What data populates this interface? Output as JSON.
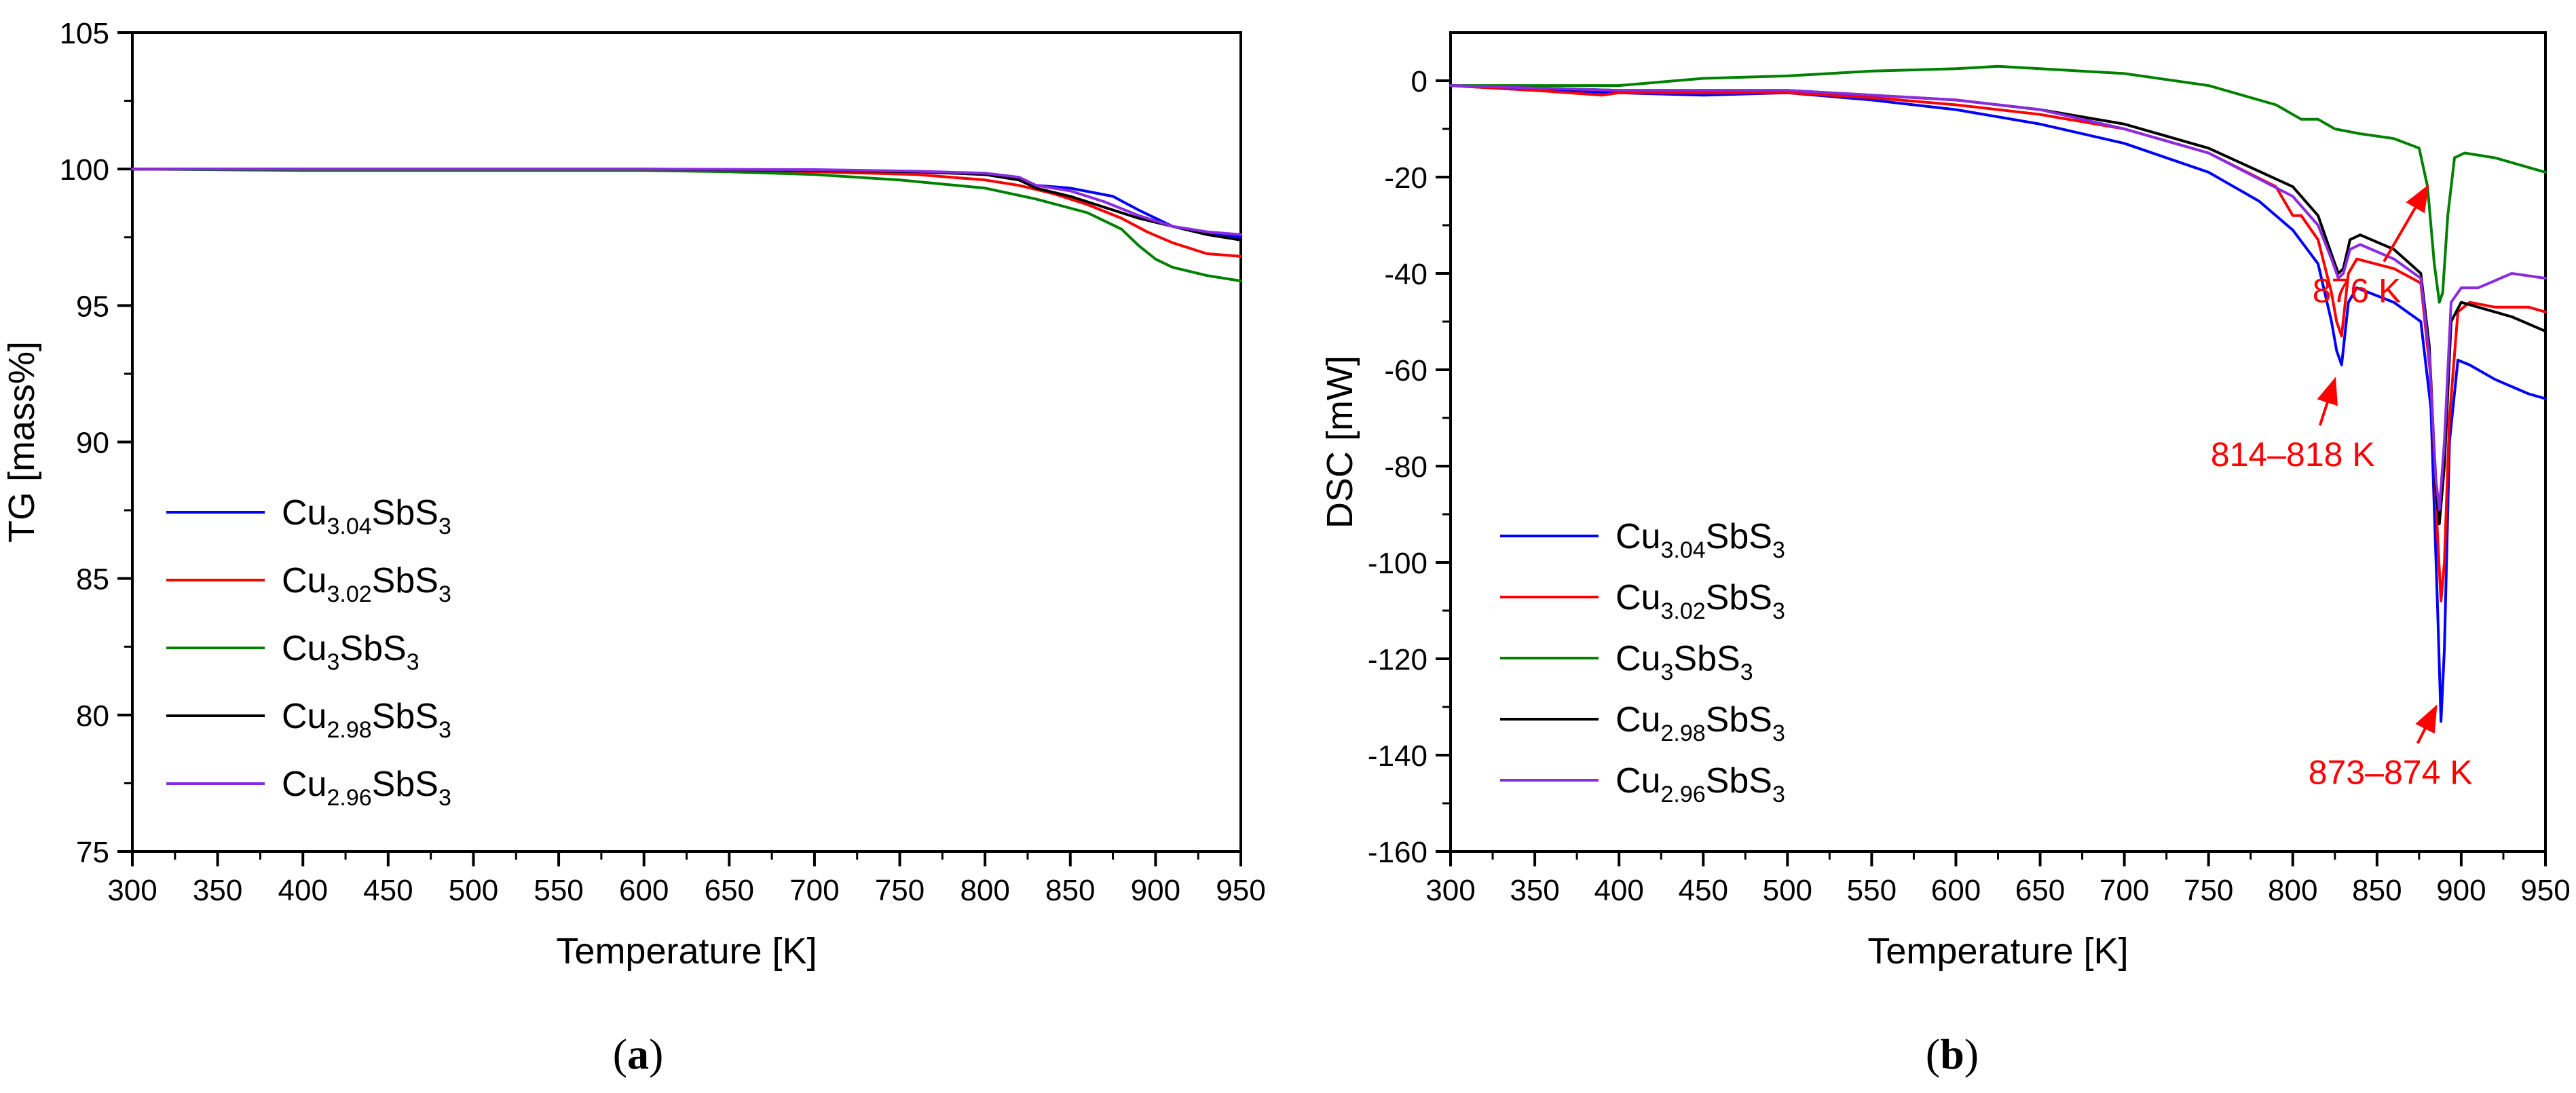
{
  "chart_data": [
    {
      "type": "line",
      "panel_label": "(a)",
      "xlabel": "Temperature [K]",
      "ylabel": "TG [mass%]",
      "xlim": [
        300,
        950
      ],
      "ylim": [
        75,
        105
      ],
      "xticks": [
        300,
        350,
        400,
        450,
        500,
        550,
        600,
        650,
        700,
        750,
        800,
        850,
        900,
        950
      ],
      "yticks": [
        75,
        80,
        85,
        90,
        95,
        100,
        105
      ],
      "legend_position": "left-middle",
      "series": [
        {
          "name": "Cu3.04SbS3",
          "label_main": "Cu",
          "label_sub": "3.04",
          "label_tail": "SbS",
          "label_sub2": "3",
          "color": "#0000ff",
          "x": [
            300,
            400,
            500,
            600,
            700,
            760,
            800,
            820,
            830,
            850,
            875,
            890,
            910,
            930,
            950
          ],
          "y": [
            100,
            100,
            100,
            100,
            99.95,
            99.9,
            99.8,
            99.6,
            99.4,
            99.3,
            99.0,
            98.5,
            97.9,
            97.7,
            97.5
          ]
        },
        {
          "name": "Cu3.02SbS3",
          "label_main": "Cu",
          "label_sub": "3.02",
          "label_tail": "SbS",
          "label_sub2": "3",
          "color": "#ff0000",
          "x": [
            300,
            400,
            500,
            600,
            700,
            760,
            800,
            820,
            840,
            860,
            880,
            895,
            910,
            930,
            950
          ],
          "y": [
            100,
            100,
            100,
            100,
            99.9,
            99.8,
            99.6,
            99.4,
            99.1,
            98.7,
            98.2,
            97.7,
            97.3,
            96.9,
            96.8
          ]
        },
        {
          "name": "Cu3SbS3",
          "label_main": "Cu",
          "label_sub": "3",
          "label_tail": "SbS",
          "label_sub2": "3",
          "color": "#008000",
          "x": [
            300,
            400,
            500,
            600,
            650,
            700,
            750,
            800,
            830,
            860,
            880,
            890,
            900,
            910,
            930,
            950
          ],
          "y": [
            100,
            99.95,
            99.95,
            99.95,
            99.9,
            99.8,
            99.6,
            99.3,
            98.9,
            98.4,
            97.8,
            97.2,
            96.7,
            96.4,
            96.1,
            95.9
          ]
        },
        {
          "name": "Cu2.98SbS3",
          "label_main": "Cu",
          "label_sub": "2.98",
          "label_tail": "SbS",
          "label_sub2": "3",
          "color": "#000000",
          "x": [
            300,
            400,
            500,
            600,
            700,
            760,
            800,
            820,
            830,
            850,
            870,
            890,
            910,
            930,
            950
          ],
          "y": [
            100,
            100,
            100,
            100,
            99.95,
            99.9,
            99.8,
            99.6,
            99.3,
            99.0,
            98.6,
            98.2,
            97.9,
            97.6,
            97.4
          ]
        },
        {
          "name": "Cu2.96SbS3",
          "label_main": "Cu",
          "label_sub": "2.96",
          "label_tail": "SbS",
          "label_sub2": "3",
          "color": "#8a2be2",
          "x": [
            300,
            400,
            500,
            600,
            700,
            760,
            800,
            820,
            830,
            850,
            870,
            890,
            910,
            930,
            950
          ],
          "y": [
            100,
            100,
            100,
            100,
            99.98,
            99.92,
            99.85,
            99.7,
            99.4,
            99.2,
            98.8,
            98.3,
            97.9,
            97.7,
            97.6
          ]
        }
      ]
    },
    {
      "type": "line",
      "panel_label": "(b)",
      "xlabel": "Temperature [K]",
      "ylabel": "DSC [mW]",
      "xlim": [
        300,
        950
      ],
      "ylim": [
        -160,
        10
      ],
      "xticks": [
        300,
        350,
        400,
        450,
        500,
        550,
        600,
        650,
        700,
        750,
        800,
        850,
        900,
        950
      ],
      "yticks": [
        -160,
        -140,
        -120,
        -100,
        -80,
        -60,
        -40,
        -20,
        0
      ],
      "legend_position": "left-lower",
      "annotations": [
        {
          "text": "876 K",
          "color": "#ff0000",
          "arrow_to": [
            880,
            -22
          ],
          "text_at": [
            838,
            -46
          ]
        },
        {
          "text": "814–818 K",
          "color": "#ff0000",
          "arrow_to": [
            825,
            -62
          ],
          "text_at": [
            800,
            -80
          ]
        },
        {
          "text": "873–874 K",
          "color": "#ff0000",
          "arrow_to": [
            885,
            -130
          ],
          "text_at": [
            858,
            -146
          ]
        }
      ],
      "series": [
        {
          "name": "Cu3.04SbS3",
          "label_main": "Cu",
          "label_sub": "3.04",
          "label_tail": "SbS",
          "label_sub2": "3",
          "color": "#0000ff",
          "x": [
            300,
            350,
            400,
            450,
            500,
            550,
            600,
            650,
            700,
            750,
            780,
            800,
            815,
            823,
            826,
            829,
            833,
            838,
            860,
            876,
            882,
            886,
            888,
            890,
            893,
            898,
            905,
            920,
            940,
            950
          ],
          "y": [
            -1,
            -2,
            -2.5,
            -3,
            -2.5,
            -4,
            -6,
            -9,
            -13,
            -19,
            -25,
            -31,
            -38,
            -50,
            -56,
            -59,
            -46,
            -43,
            -46,
            -50,
            -68,
            -110,
            -133,
            -118,
            -75,
            -58,
            -59,
            -62,
            -65,
            -66
          ]
        },
        {
          "name": "Cu3.02SbS3",
          "label_main": "Cu",
          "label_sub": "3.02",
          "label_tail": "SbS",
          "label_sub2": "3",
          "color": "#ff0000",
          "x": [
            300,
            350,
            390,
            400,
            450,
            500,
            550,
            600,
            650,
            700,
            750,
            790,
            800,
            805,
            815,
            823,
            826,
            829,
            833,
            838,
            860,
            876,
            882,
            886,
            888,
            890,
            893,
            898,
            905,
            920,
            940,
            950
          ],
          "y": [
            -1,
            -2,
            -3,
            -2.5,
            -2.5,
            -2.5,
            -3.5,
            -5,
            -7,
            -10,
            -15,
            -22,
            -28,
            -28,
            -33,
            -44,
            -50,
            -53,
            -40,
            -37,
            -39,
            -42,
            -62,
            -95,
            -108,
            -100,
            -70,
            -48,
            -46,
            -47,
            -47,
            -48
          ]
        },
        {
          "name": "Cu3SbS3",
          "label_main": "Cu",
          "label_sub": "3",
          "label_tail": "SbS",
          "label_sub2": "3",
          "color": "#008000",
          "x": [
            300,
            350,
            400,
            450,
            500,
            550,
            600,
            625,
            650,
            700,
            750,
            790,
            805,
            815,
            825,
            840,
            860,
            875,
            880,
            884,
            887,
            889,
            892,
            896,
            902,
            920,
            940,
            950
          ],
          "y": [
            -1,
            -1,
            -1,
            0.5,
            1,
            2,
            2.5,
            3,
            2.5,
            1.5,
            -1,
            -5,
            -8,
            -8,
            -10,
            -11,
            -12,
            -14,
            -22,
            -38,
            -46,
            -44,
            -28,
            -16,
            -15,
            -16,
            -18,
            -19
          ]
        },
        {
          "name": "Cu2.98SbS3",
          "label_main": "Cu",
          "label_sub": "2.98",
          "label_tail": "SbS",
          "label_sub2": "3",
          "color": "#000000",
          "x": [
            300,
            350,
            400,
            450,
            500,
            550,
            600,
            650,
            700,
            750,
            800,
            815,
            823,
            827,
            830,
            834,
            840,
            860,
            876,
            881,
            885,
            887,
            890,
            894,
            900,
            910,
            930,
            950
          ],
          "y": [
            -1,
            -1.5,
            -2,
            -2,
            -2,
            -3,
            -4,
            -6,
            -9,
            -14,
            -22,
            -28,
            -36,
            -40,
            -39,
            -33,
            -32,
            -35,
            -40,
            -55,
            -85,
            -92,
            -80,
            -50,
            -46,
            -47,
            -49,
            -52
          ]
        },
        {
          "name": "Cu2.96SbS3",
          "label_main": "Cu",
          "label_sub": "2.96",
          "label_tail": "SbS",
          "label_sub2": "3",
          "color": "#8a2be2",
          "x": [
            300,
            350,
            400,
            450,
            500,
            550,
            600,
            650,
            700,
            750,
            800,
            815,
            823,
            827,
            830,
            834,
            840,
            860,
            876,
            881,
            885,
            887,
            890,
            894,
            900,
            910,
            930,
            950
          ],
          "y": [
            -1,
            -1.5,
            -2,
            -2,
            -2,
            -3,
            -4,
            -6,
            -10,
            -15,
            -24,
            -30,
            -37,
            -41,
            -40,
            -35,
            -34,
            -37,
            -41,
            -57,
            -83,
            -89,
            -75,
            -46,
            -43,
            -43,
            -40,
            -41
          ]
        }
      ]
    }
  ]
}
